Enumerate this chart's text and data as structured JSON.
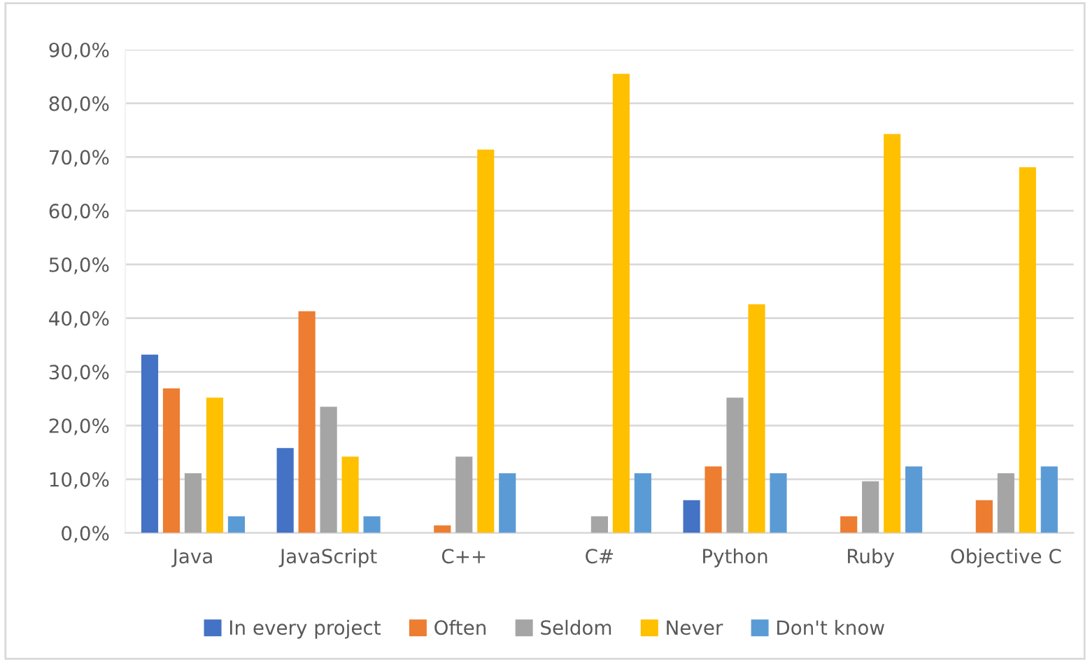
{
  "chart_data": {
    "type": "bar",
    "categories": [
      "Java",
      "JavaScript",
      "C++",
      "C#",
      "Python",
      "Ruby",
      "Objective C"
    ],
    "series": [
      {
        "name": "In every project",
        "color": "#4472c4",
        "values": [
          33.2,
          15.8,
          0,
          0,
          6.1,
          0,
          0
        ]
      },
      {
        "name": "Often",
        "color": "#ed7d31",
        "values": [
          26.9,
          41.3,
          1.4,
          0,
          12.4,
          3.1,
          6.1
        ]
      },
      {
        "name": "Seldom",
        "color": "#a5a5a5",
        "values": [
          11.1,
          23.5,
          14.2,
          3.1,
          25.2,
          9.6,
          11.1
        ]
      },
      {
        "name": "Never",
        "color": "#ffc000",
        "values": [
          25.2,
          14.2,
          71.4,
          85.5,
          42.6,
          74.3,
          68.1
        ]
      },
      {
        "name": "Don't know",
        "color": "#5b9bd5",
        "values": [
          3.1,
          3.1,
          11.1,
          11.1,
          11.1,
          12.4,
          12.4
        ]
      }
    ],
    "ylim": [
      0,
      90
    ],
    "yticks": [
      {
        "value": 0,
        "label": "0,0%"
      },
      {
        "value": 10,
        "label": "10,0%"
      },
      {
        "value": 20,
        "label": "20,0%"
      },
      {
        "value": 30,
        "label": "30,0%"
      },
      {
        "value": 40,
        "label": "40,0%"
      },
      {
        "value": 50,
        "label": "50,0%"
      },
      {
        "value": 60,
        "label": "60,0%"
      },
      {
        "value": 70,
        "label": "70,0%"
      },
      {
        "value": 80,
        "label": "80,0%"
      },
      {
        "value": 90,
        "label": "90,0%"
      }
    ],
    "grid": "y",
    "legend": "bottom"
  }
}
